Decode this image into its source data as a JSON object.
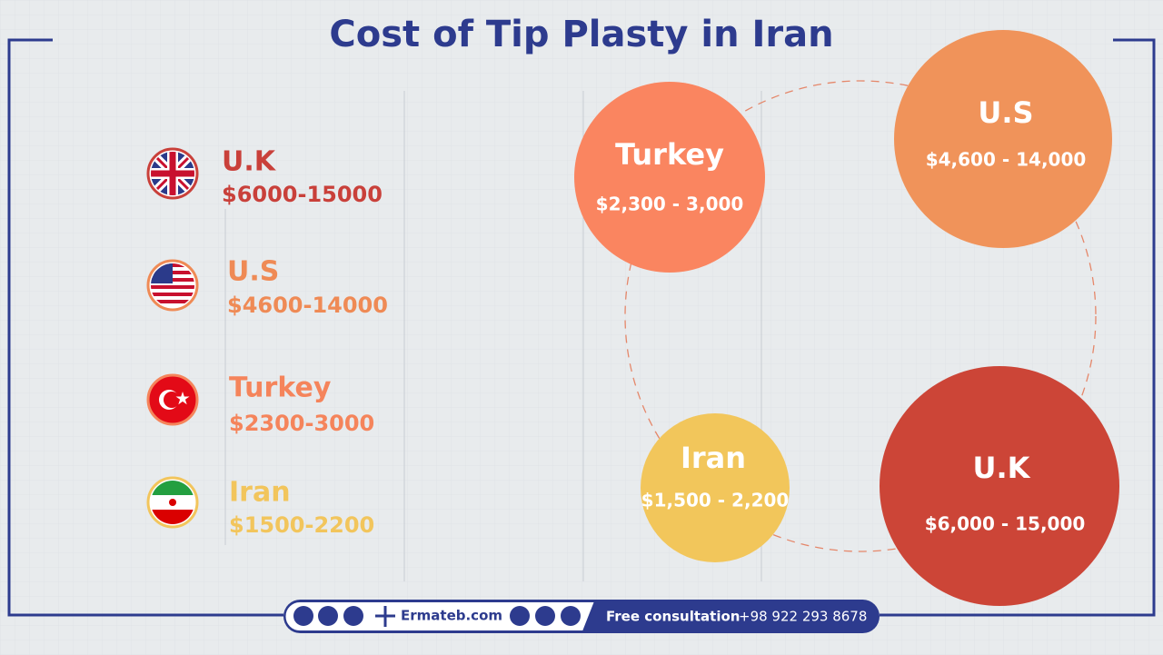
{
  "header": {
    "title": "Cost of Tip Plasty in Iran"
  },
  "list": [
    {
      "country": "U.K",
      "price": "$6000-15000"
    },
    {
      "country": "U.S",
      "price": "$4600-14000"
    },
    {
      "country": "Turkey",
      "price": "$2300-3000"
    },
    {
      "country": "Iran",
      "price": "$1500-2200"
    }
  ],
  "bubbles": [
    {
      "label": "Turkey",
      "price": "$2,300 - 3,000"
    },
    {
      "label": "U.S",
      "price": "$4,600 - 14,000"
    },
    {
      "label": "Iran",
      "price": "$1,500 - 2,200"
    },
    {
      "label": "U.K",
      "price": "$6,000 - 15,000"
    }
  ],
  "footer": {
    "site": "Ermateb.com",
    "consultation": "Free consultation",
    "phone": "+98 922 293 8678"
  }
}
